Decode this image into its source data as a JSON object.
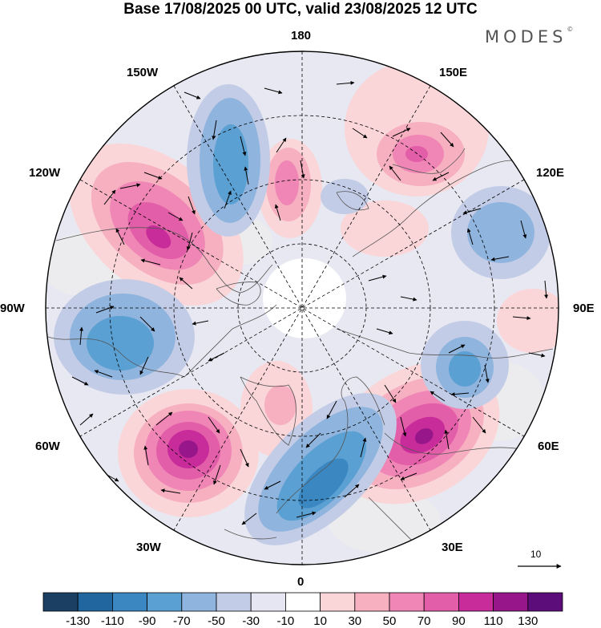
{
  "title": "Base 17/08/2025 00 UTC, valid 23/08/2025 12 UTC",
  "brand": "MODES",
  "brand_mark": "©",
  "longitude_labels": {
    "lon_180": "180",
    "lon_150E": "150E",
    "lon_120E": "120E",
    "lon_90E": "90E",
    "lon_60E": "60E",
    "lon_30E": "30E",
    "lon_0": "0",
    "lon_30W": "30W",
    "lon_60W": "60W",
    "lon_90W": "90W",
    "lon_120W": "120W",
    "lon_150W": "150W"
  },
  "reference_vector": {
    "label": "10"
  },
  "colorbar": {
    "ticks": [
      "-130",
      "-110",
      "-90",
      "-70",
      "-50",
      "-30",
      "-10",
      "10",
      "30",
      "50",
      "70",
      "90",
      "110",
      "130"
    ],
    "colors": [
      "#1a3f63",
      "#2266a0",
      "#3a87c2",
      "#5aa0d2",
      "#8fb4de",
      "#c3cce6",
      "#e6e6f2",
      "#ffffff",
      "#fad6d8",
      "#f6b0c0",
      "#ef86b6",
      "#e35ea8",
      "#c82b9a",
      "#97178b",
      "#5c0d7a"
    ]
  },
  "anomaly_centers": [
    {
      "name": "north-america-west-positive",
      "sign": "+",
      "max_class": "90"
    },
    {
      "name": "north-america-east-negative",
      "sign": "-",
      "max_class": "-70"
    },
    {
      "name": "north-atlantic-positive",
      "sign": "+",
      "max_class": "110"
    },
    {
      "name": "europe-negative",
      "sign": "-",
      "max_class": "-70"
    },
    {
      "name": "west-siberia-positive",
      "sign": "+",
      "max_class": "110"
    },
    {
      "name": "central-siberia-negative",
      "sign": "-",
      "max_class": "-50"
    },
    {
      "name": "east-siberia-negative",
      "sign": "-",
      "max_class": "-50"
    },
    {
      "name": "bering-positive",
      "sign": "+",
      "max_class": "70"
    },
    {
      "name": "beaufort-positive",
      "sign": "+",
      "max_class": "70"
    },
    {
      "name": "alaska-negative",
      "sign": "-",
      "max_class": "-70"
    }
  ]
}
